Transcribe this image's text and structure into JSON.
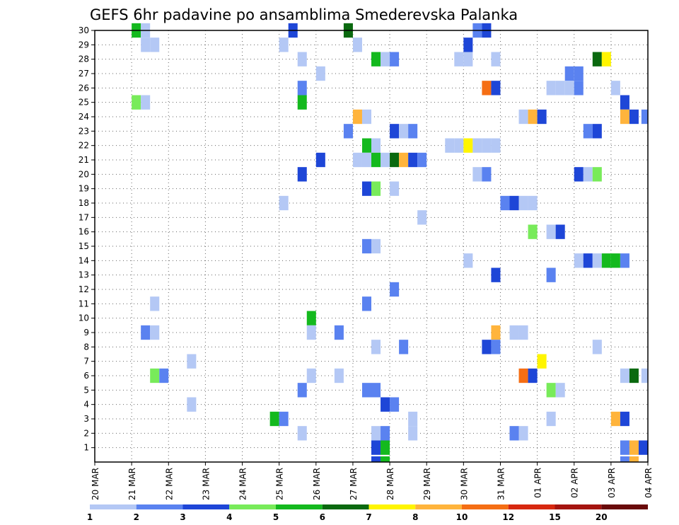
{
  "chart_data": {
    "type": "heatmap",
    "title": "GEFS 6hr padavine po ansamblima Smederevska Palanka",
    "xlabel": "",
    "ylabel": "",
    "x_ticks": [
      "20 MAR",
      "21 MAR",
      "22 MAR",
      "23 MAR",
      "24 MAR",
      "25 MAR",
      "26 MAR",
      "27 MAR",
      "28 MAR",
      "29 MAR",
      "30 MAR",
      "31 MAR",
      "01 APR",
      "02 APR",
      "03 APR",
      "04 APR"
    ],
    "x_units": "6-hour steps from 20 MAR 00Z",
    "xlim": [
      0,
      60
    ],
    "y_ticks": [
      1,
      2,
      3,
      4,
      5,
      6,
      7,
      8,
      9,
      10,
      11,
      12,
      13,
      14,
      15,
      16,
      17,
      18,
      19,
      20,
      21,
      22,
      23,
      24,
      25,
      26,
      27,
      28,
      29,
      30
    ],
    "ylim": [
      0,
      30
    ],
    "grid": true,
    "legend": {
      "placement": "bottom",
      "levels": [
        1,
        2,
        3,
        4,
        5,
        6,
        7,
        8,
        10,
        12,
        15,
        20
      ],
      "colors": [
        "#b4c8f5",
        "#5a82f0",
        "#1e46d7",
        "#78eb5a",
        "#14b91e",
        "#0a690f",
        "#fff500",
        "#ffb43c",
        "#f56e14",
        "#d7280f",
        "#a5140f",
        "#690a0a"
      ]
    },
    "cells": [
      {
        "x": 4.5,
        "y": 30,
        "v": 5
      },
      {
        "x": 5.5,
        "y": 30,
        "v": 1
      },
      {
        "x": 21.5,
        "y": 30,
        "v": 3
      },
      {
        "x": 27.5,
        "y": 30,
        "v": 6
      },
      {
        "x": 41.5,
        "y": 30,
        "v": 2
      },
      {
        "x": 42.5,
        "y": 30,
        "v": 3
      },
      {
        "x": 5.5,
        "y": 29,
        "v": 1
      },
      {
        "x": 6.5,
        "y": 29,
        "v": 1
      },
      {
        "x": 20.5,
        "y": 29,
        "v": 1
      },
      {
        "x": 28.5,
        "y": 29,
        "v": 1
      },
      {
        "x": 40.5,
        "y": 29,
        "v": 3
      },
      {
        "x": 22.5,
        "y": 28,
        "v": 1
      },
      {
        "x": 30.5,
        "y": 28,
        "v": 5
      },
      {
        "x": 31.5,
        "y": 28,
        "v": 1
      },
      {
        "x": 32.5,
        "y": 28,
        "v": 2
      },
      {
        "x": 39.5,
        "y": 28,
        "v": 1
      },
      {
        "x": 40.5,
        "y": 28,
        "v": 1
      },
      {
        "x": 43.5,
        "y": 28,
        "v": 1
      },
      {
        "x": 54.5,
        "y": 28,
        "v": 6
      },
      {
        "x": 55.5,
        "y": 28,
        "v": 7
      },
      {
        "x": 24.5,
        "y": 27,
        "v": 1
      },
      {
        "x": 51.5,
        "y": 27,
        "v": 2
      },
      {
        "x": 52.5,
        "y": 27,
        "v": 2
      },
      {
        "x": 22.5,
        "y": 26,
        "v": 2
      },
      {
        "x": 42.5,
        "y": 26,
        "v": 10
      },
      {
        "x": 43.5,
        "y": 26,
        "v": 3
      },
      {
        "x": 49.5,
        "y": 26,
        "v": 1
      },
      {
        "x": 50.5,
        "y": 26,
        "v": 1
      },
      {
        "x": 51.5,
        "y": 26,
        "v": 1
      },
      {
        "x": 52.5,
        "y": 26,
        "v": 2
      },
      {
        "x": 56.5,
        "y": 26,
        "v": 1
      },
      {
        "x": 4.5,
        "y": 25,
        "v": 4
      },
      {
        "x": 5.5,
        "y": 25,
        "v": 1
      },
      {
        "x": 22.5,
        "y": 25,
        "v": 5
      },
      {
        "x": 57.5,
        "y": 25,
        "v": 3
      },
      {
        "x": 28.5,
        "y": 24,
        "v": 8
      },
      {
        "x": 29.5,
        "y": 24,
        "v": 1
      },
      {
        "x": 46.5,
        "y": 24,
        "v": 1
      },
      {
        "x": 47.5,
        "y": 24,
        "v": 8
      },
      {
        "x": 48.5,
        "y": 24,
        "v": 3
      },
      {
        "x": 57.5,
        "y": 24,
        "v": 8
      },
      {
        "x": 58.5,
        "y": 24,
        "v": 3
      },
      {
        "x": 59.8,
        "y": 24,
        "v": 2
      },
      {
        "x": 27.5,
        "y": 23,
        "v": 2
      },
      {
        "x": 32.5,
        "y": 23,
        "v": 3
      },
      {
        "x": 33.5,
        "y": 23,
        "v": 1
      },
      {
        "x": 34.5,
        "y": 23,
        "v": 2
      },
      {
        "x": 53.5,
        "y": 23,
        "v": 2
      },
      {
        "x": 54.5,
        "y": 23,
        "v": 3
      },
      {
        "x": 29.5,
        "y": 22,
        "v": 5
      },
      {
        "x": 30.5,
        "y": 22,
        "v": 1
      },
      {
        "x": 38.5,
        "y": 22,
        "v": 1
      },
      {
        "x": 39.5,
        "y": 22,
        "v": 1
      },
      {
        "x": 40.5,
        "y": 22,
        "v": 7
      },
      {
        "x": 41.5,
        "y": 22,
        "v": 1
      },
      {
        "x": 42.5,
        "y": 22,
        "v": 1
      },
      {
        "x": 43.5,
        "y": 22,
        "v": 1
      },
      {
        "x": 24.5,
        "y": 21,
        "v": 3
      },
      {
        "x": 28.5,
        "y": 21,
        "v": 1
      },
      {
        "x": 29.5,
        "y": 21,
        "v": 1
      },
      {
        "x": 30.5,
        "y": 21,
        "v": 5
      },
      {
        "x": 31.5,
        "y": 21,
        "v": 1
      },
      {
        "x": 32.5,
        "y": 21,
        "v": 6
      },
      {
        "x": 33.5,
        "y": 21,
        "v": 8
      },
      {
        "x": 34.5,
        "y": 21,
        "v": 3
      },
      {
        "x": 35.5,
        "y": 21,
        "v": 2
      },
      {
        "x": 22.5,
        "y": 20,
        "v": 3
      },
      {
        "x": 41.5,
        "y": 20,
        "v": 1
      },
      {
        "x": 42.5,
        "y": 20,
        "v": 2
      },
      {
        "x": 52.5,
        "y": 20,
        "v": 3
      },
      {
        "x": 53.5,
        "y": 20,
        "v": 1
      },
      {
        "x": 54.5,
        "y": 20,
        "v": 4
      },
      {
        "x": 29.5,
        "y": 19,
        "v": 3
      },
      {
        "x": 30.5,
        "y": 19,
        "v": 4
      },
      {
        "x": 32.5,
        "y": 19,
        "v": 1
      },
      {
        "x": 20.5,
        "y": 18,
        "v": 1
      },
      {
        "x": 44.5,
        "y": 18,
        "v": 2
      },
      {
        "x": 45.5,
        "y": 18,
        "v": 3
      },
      {
        "x": 46.5,
        "y": 18,
        "v": 1
      },
      {
        "x": 47.5,
        "y": 18,
        "v": 1
      },
      {
        "x": 35.5,
        "y": 17,
        "v": 1
      },
      {
        "x": 47.5,
        "y": 16,
        "v": 4
      },
      {
        "x": 49.5,
        "y": 16,
        "v": 1
      },
      {
        "x": 50.5,
        "y": 16,
        "v": 3
      },
      {
        "x": 29.5,
        "y": 15,
        "v": 2
      },
      {
        "x": 30.5,
        "y": 15,
        "v": 1
      },
      {
        "x": 40.5,
        "y": 14,
        "v": 1
      },
      {
        "x": 52.5,
        "y": 14,
        "v": 1
      },
      {
        "x": 53.5,
        "y": 14,
        "v": 3
      },
      {
        "x": 54.5,
        "y": 14,
        "v": 1
      },
      {
        "x": 55.5,
        "y": 14,
        "v": 5
      },
      {
        "x": 56.5,
        "y": 14,
        "v": 5
      },
      {
        "x": 57.5,
        "y": 14,
        "v": 2
      },
      {
        "x": 43.5,
        "y": 13,
        "v": 3
      },
      {
        "x": 49.5,
        "y": 13,
        "v": 2
      },
      {
        "x": 32.5,
        "y": 12,
        "v": 2
      },
      {
        "x": 6.5,
        "y": 11,
        "v": 1
      },
      {
        "x": 29.5,
        "y": 11,
        "v": 2
      },
      {
        "x": 23.5,
        "y": 10,
        "v": 5
      },
      {
        "x": 5.5,
        "y": 9,
        "v": 2
      },
      {
        "x": 6.5,
        "y": 9,
        "v": 1
      },
      {
        "x": 23.5,
        "y": 9,
        "v": 1
      },
      {
        "x": 26.5,
        "y": 9,
        "v": 2
      },
      {
        "x": 43.5,
        "y": 9,
        "v": 8
      },
      {
        "x": 45.5,
        "y": 9,
        "v": 1
      },
      {
        "x": 46.5,
        "y": 9,
        "v": 1
      },
      {
        "x": 30.5,
        "y": 8,
        "v": 1
      },
      {
        "x": 33.5,
        "y": 8,
        "v": 2
      },
      {
        "x": 42.5,
        "y": 8,
        "v": 3
      },
      {
        "x": 43.5,
        "y": 8,
        "v": 2
      },
      {
        "x": 54.5,
        "y": 8,
        "v": 1
      },
      {
        "x": 10.5,
        "y": 7,
        "v": 1
      },
      {
        "x": 48.5,
        "y": 7,
        "v": 7
      },
      {
        "x": 6.5,
        "y": 6,
        "v": 4
      },
      {
        "x": 7.5,
        "y": 6,
        "v": 2
      },
      {
        "x": 23.5,
        "y": 6,
        "v": 1
      },
      {
        "x": 26.5,
        "y": 6,
        "v": 1
      },
      {
        "x": 46.5,
        "y": 6,
        "v": 10
      },
      {
        "x": 47.5,
        "y": 6,
        "v": 3
      },
      {
        "x": 57.5,
        "y": 6,
        "v": 1
      },
      {
        "x": 58.5,
        "y": 6,
        "v": 6
      },
      {
        "x": 59.8,
        "y": 6,
        "v": 1
      },
      {
        "x": 22.5,
        "y": 5,
        "v": 2
      },
      {
        "x": 29.5,
        "y": 5,
        "v": 2
      },
      {
        "x": 30.5,
        "y": 5,
        "v": 2
      },
      {
        "x": 49.5,
        "y": 5,
        "v": 4
      },
      {
        "x": 50.5,
        "y": 5,
        "v": 1
      },
      {
        "x": 10.5,
        "y": 4,
        "v": 1
      },
      {
        "x": 31.5,
        "y": 4,
        "v": 3
      },
      {
        "x": 32.5,
        "y": 4,
        "v": 2
      },
      {
        "x": 19.5,
        "y": 3,
        "v": 5
      },
      {
        "x": 20.5,
        "y": 3,
        "v": 2
      },
      {
        "x": 34.5,
        "y": 3,
        "v": 1
      },
      {
        "x": 49.5,
        "y": 3,
        "v": 1
      },
      {
        "x": 56.5,
        "y": 3,
        "v": 8
      },
      {
        "x": 57.5,
        "y": 3,
        "v": 3
      },
      {
        "x": 22.5,
        "y": 2,
        "v": 1
      },
      {
        "x": 30.5,
        "y": 2,
        "v": 1
      },
      {
        "x": 31.5,
        "y": 2,
        "v": 2
      },
      {
        "x": 34.5,
        "y": 2,
        "v": 1
      },
      {
        "x": 45.5,
        "y": 2,
        "v": 2
      },
      {
        "x": 46.5,
        "y": 2,
        "v": 1
      },
      {
        "x": 30.5,
        "y": 1,
        "v": 3
      },
      {
        "x": 31.5,
        "y": 1,
        "v": 5
      },
      {
        "x": 57.5,
        "y": 1,
        "v": 2
      },
      {
        "x": 58.5,
        "y": 1,
        "v": 8
      },
      {
        "x": 59.5,
        "y": 1,
        "v": 3
      }
    ]
  }
}
